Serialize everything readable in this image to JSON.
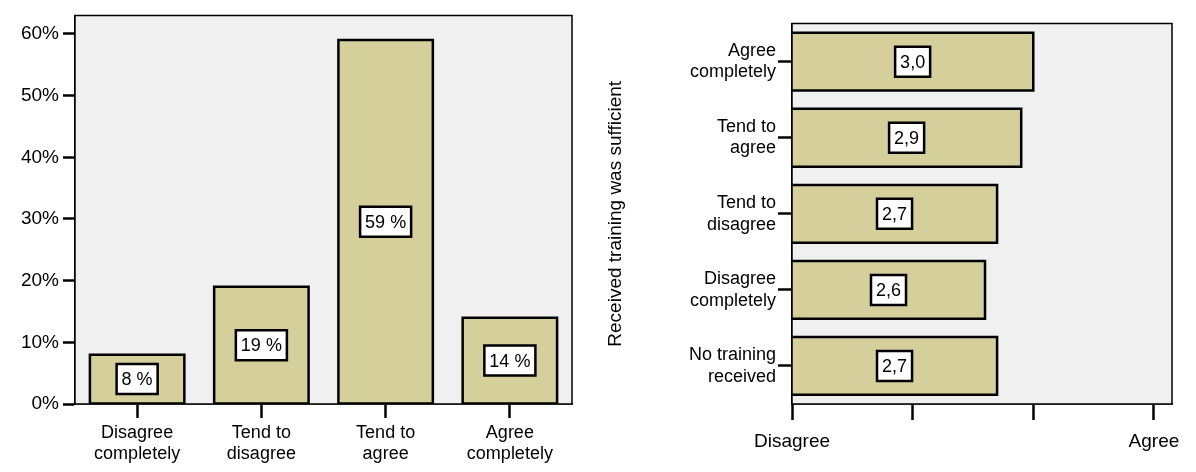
{
  "chart_data": [
    {
      "type": "bar",
      "categories": [
        "Disagree completely",
        "Tend to disagree",
        "Tend to agree",
        "Agree completely"
      ],
      "values": [
        8,
        19,
        59,
        14
      ],
      "value_labels": [
        "8 %",
        "19 %",
        "59 %",
        "14 %"
      ],
      "color": "#d4cf9b",
      "ylim": [
        0,
        63
      ],
      "yticks": [
        {
          "value": 0,
          "label": "0%"
        },
        {
          "value": 10,
          "label": "10%"
        },
        {
          "value": 20,
          "label": "20%"
        },
        {
          "value": 30,
          "label": "30%"
        },
        {
          "value": 40,
          "label": "40%"
        },
        {
          "value": 50,
          "label": "50%"
        },
        {
          "value": 60,
          "label": "60%"
        }
      ],
      "grid": false
    },
    {
      "type": "bar",
      "orientation": "horizontal",
      "ylabel": "Received training was sufficient",
      "categories": [
        "Agree completely",
        "Tend to agree",
        "Tend to disagree",
        "Disagree completely",
        "No training received"
      ],
      "values": [
        3.0,
        2.9,
        2.7,
        2.6,
        2.7
      ],
      "value_labels": [
        "3,0",
        "2,9",
        "2,7",
        "2,6",
        "2,7"
      ],
      "color": "#d4cf9b",
      "xlim": [
        1,
        4.15
      ],
      "xticks": [
        {
          "value": 1,
          "label": null
        },
        {
          "value": 2,
          "label": null
        },
        {
          "value": 3,
          "label": null
        },
        {
          "value": 4,
          "label": null
        }
      ],
      "annotations": [
        "Disagree",
        "Agree"
      ],
      "grid": false
    }
  ]
}
